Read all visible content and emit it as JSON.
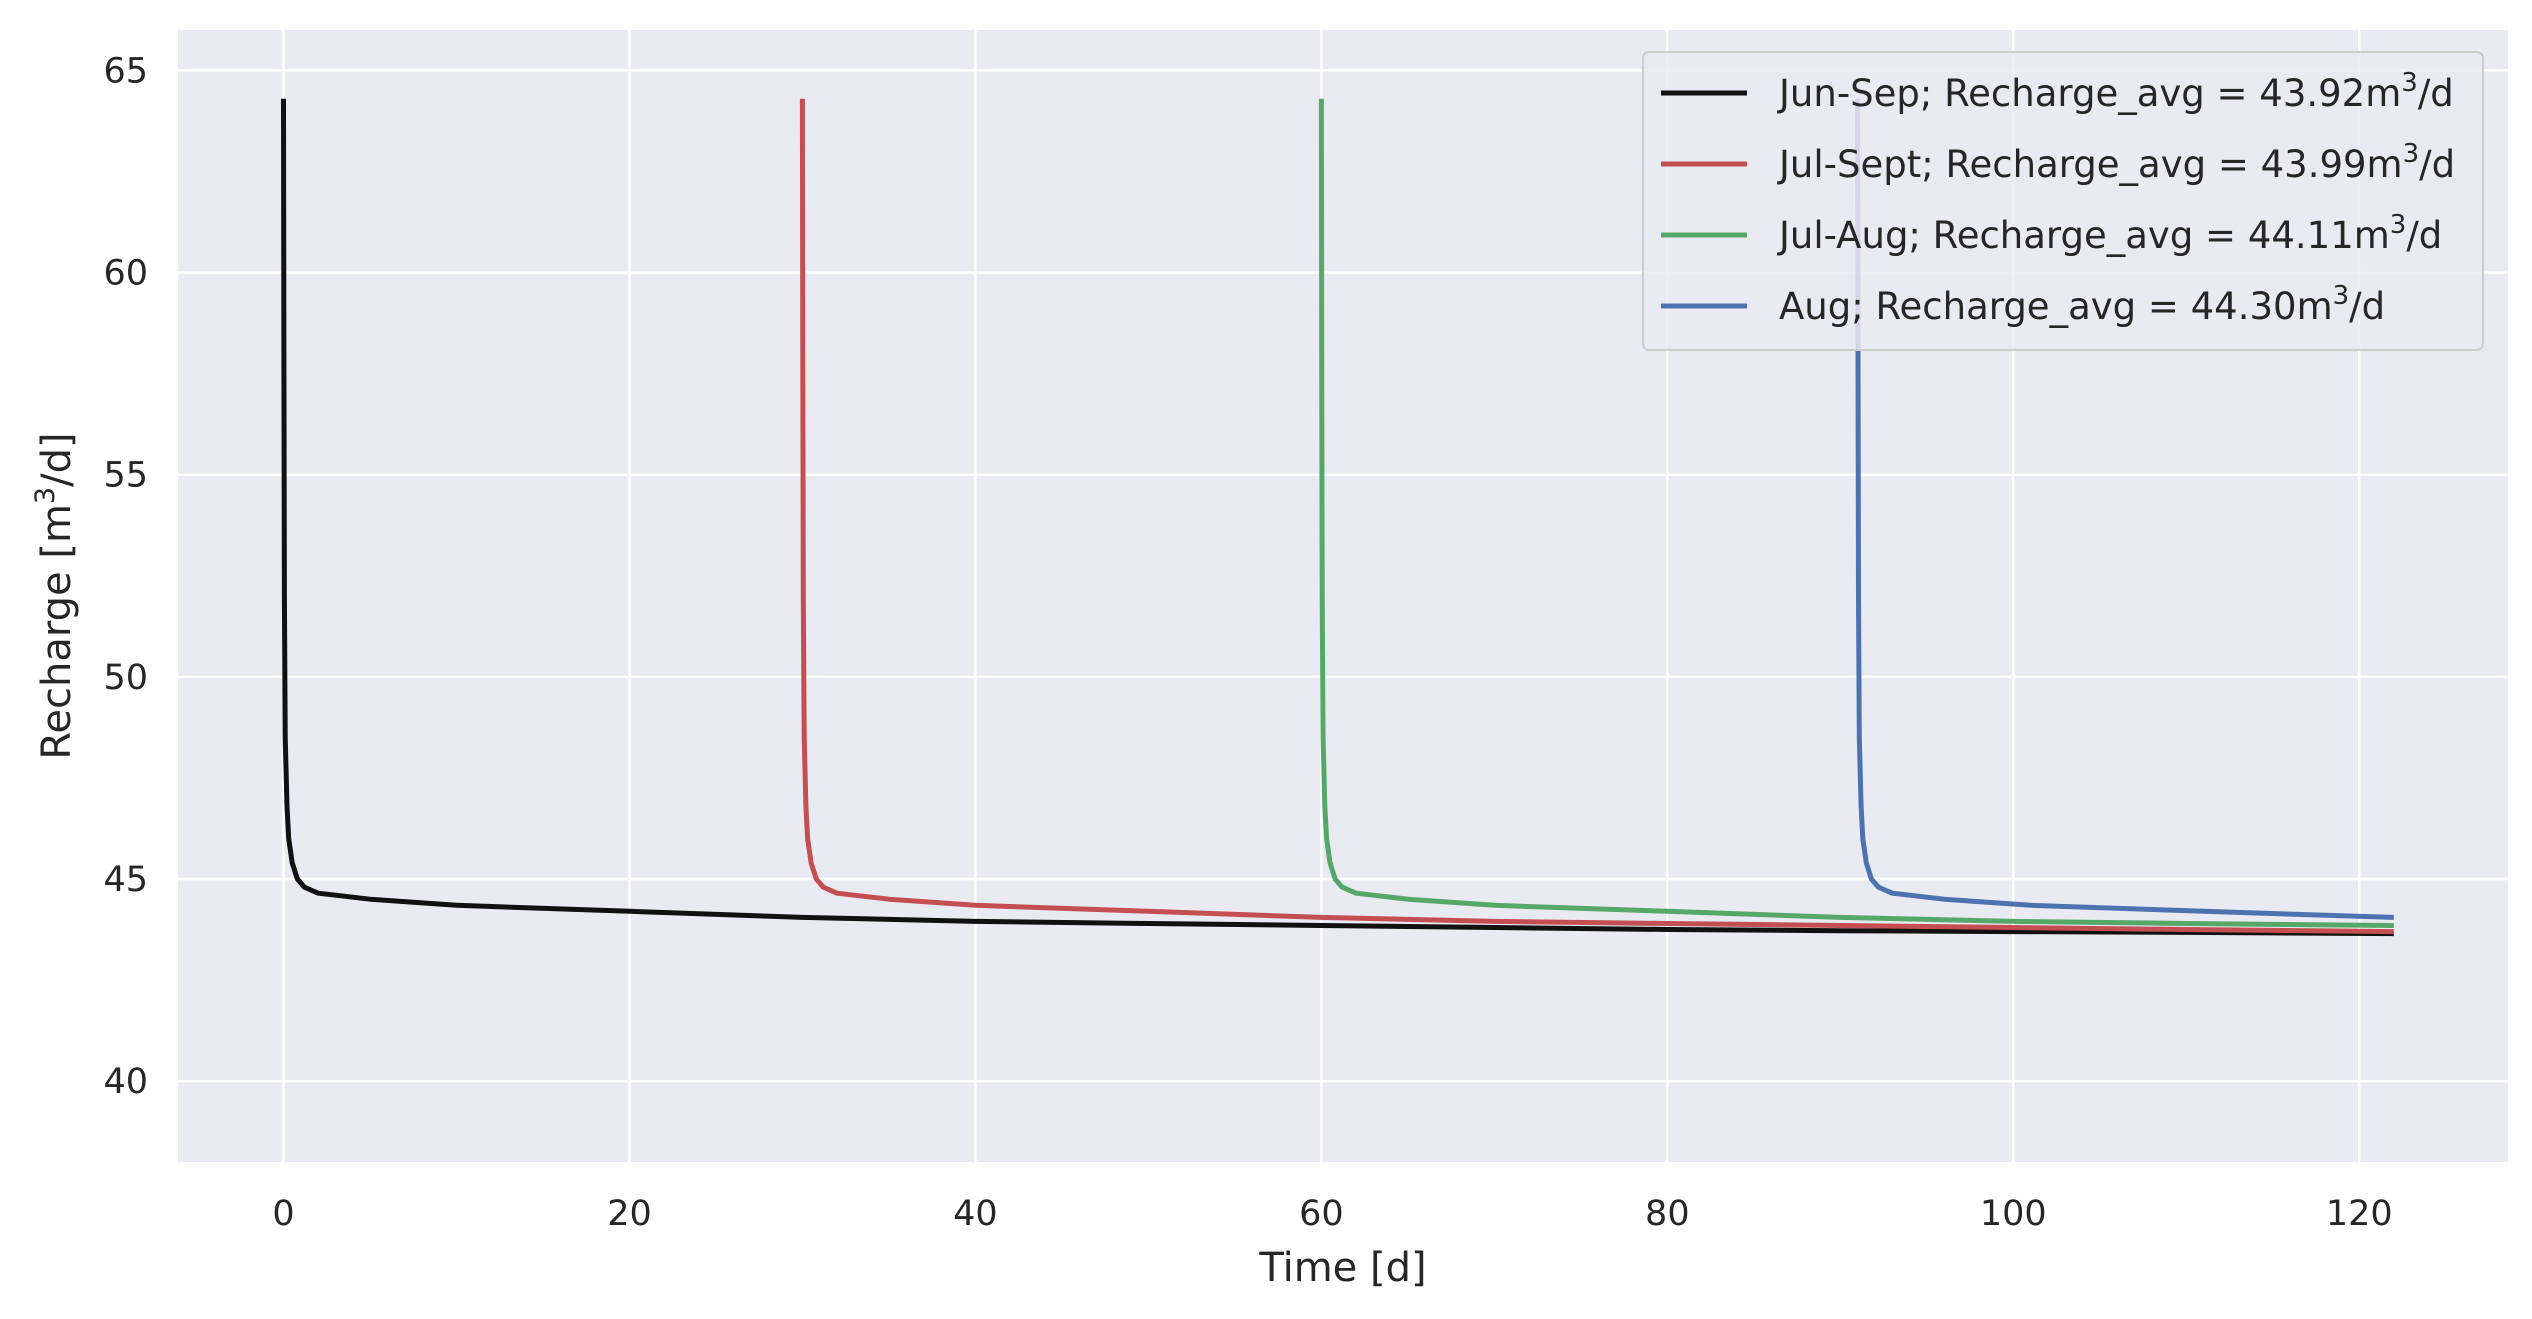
{
  "chart_data": {
    "type": "line",
    "title": "",
    "xlabel": "Time [d]",
    "ylabel": "Recharge [m",
    "ylabel_sup": "3",
    "ylabel_suffix": "/d]",
    "xlim": [
      -6.1,
      128.6
    ],
    "ylim": [
      38.0,
      66.0
    ],
    "xticks": [
      0,
      20,
      40,
      60,
      80,
      100,
      120
    ],
    "yticks": [
      40,
      45,
      50,
      55,
      60,
      65
    ],
    "grid": true,
    "legend_position": "top-right",
    "style": {
      "background": "#eaeaf2",
      "grid_color": "#ffffff"
    },
    "series": [
      {
        "name": "Jun-Sep; Recharge_avg = 43.92m",
        "name_sup": "3",
        "name_suffix": "/d",
        "color": "#111111",
        "x": [
          0,
          0.02,
          0.05,
          0.1,
          0.2,
          0.3,
          0.5,
          0.8,
          1.2,
          2,
          3,
          5,
          10,
          20,
          30,
          40,
          50,
          60,
          70,
          80,
          90,
          100,
          110,
          122
        ],
        "y": [
          64.3,
          58.0,
          52.0,
          48.5,
          46.8,
          46.0,
          45.4,
          45.0,
          44.8,
          44.65,
          44.6,
          44.5,
          44.35,
          44.2,
          44.05,
          43.95,
          43.9,
          43.85,
          43.8,
          43.75,
          43.72,
          43.7,
          43.68,
          43.65
        ]
      },
      {
        "name": "Jul-Sept; Recharge_avg = 43.99m",
        "name_sup": "3",
        "name_suffix": "/d",
        "color": "#c44e52",
        "x": [
          30,
          30.02,
          30.05,
          30.1,
          30.2,
          30.3,
          30.5,
          30.8,
          31.2,
          32,
          33,
          35,
          40,
          50,
          60,
          70,
          80,
          90,
          100,
          110,
          122
        ],
        "y": [
          64.3,
          58.0,
          52.0,
          48.5,
          46.8,
          46.0,
          45.4,
          45.0,
          44.8,
          44.65,
          44.6,
          44.5,
          44.35,
          44.2,
          44.05,
          43.95,
          43.9,
          43.85,
          43.8,
          43.75,
          43.7
        ]
      },
      {
        "name": "Jul-Aug; Recharge_avg = 44.11m",
        "name_sup": "3",
        "name_suffix": "/d",
        "color": "#55a868",
        "x": [
          60,
          60.02,
          60.05,
          60.1,
          60.2,
          60.3,
          60.5,
          60.8,
          61.2,
          62,
          63,
          65,
          70,
          80,
          90,
          100,
          110,
          122
        ],
        "y": [
          64.3,
          58.0,
          52.0,
          48.5,
          46.8,
          46.0,
          45.4,
          45.0,
          44.8,
          44.65,
          44.6,
          44.5,
          44.35,
          44.2,
          44.05,
          43.95,
          43.9,
          43.85
        ]
      },
      {
        "name": "Aug; Recharge_avg = 44.30m",
        "name_sup": "3",
        "name_suffix": "/d",
        "color": "#4c72b0",
        "x": [
          91,
          91.02,
          91.05,
          91.1,
          91.2,
          91.3,
          91.5,
          91.8,
          92.2,
          93,
          94,
          96,
          101,
          111,
          122
        ],
        "y": [
          64.3,
          58.0,
          52.0,
          48.5,
          46.8,
          46.0,
          45.4,
          45.0,
          44.8,
          44.65,
          44.6,
          44.5,
          44.35,
          44.2,
          44.05
        ]
      }
    ]
  }
}
